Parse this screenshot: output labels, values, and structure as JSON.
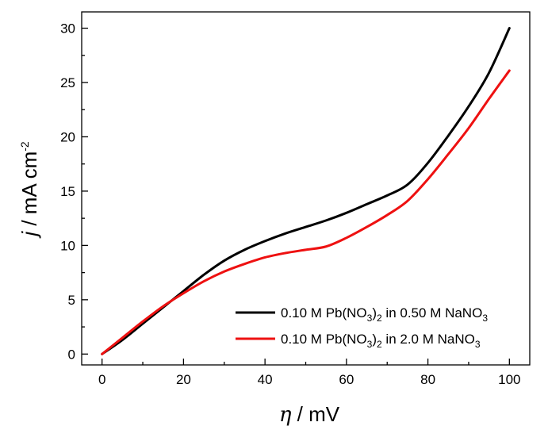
{
  "chart_data": {
    "type": "line",
    "xlabel": {
      "symbol": "η",
      "rest": " / mV"
    },
    "ylabel": {
      "symbol": "j",
      "rest": " / mA cm",
      "sup": "-2"
    },
    "xlim": [
      -5,
      105
    ],
    "ylim": [
      -1,
      31.5
    ],
    "x_ticks": [
      0,
      20,
      40,
      60,
      80,
      100
    ],
    "y_ticks": [
      0,
      5,
      10,
      15,
      20,
      25,
      30
    ],
    "grid": false,
    "legend_position": "bottom-right",
    "series": [
      {
        "name": "0.10 M Pb(NO3)2 in 0.50 M NaNO3",
        "legend": {
          "a": "0.10 M Pb(NO",
          "s1": "3",
          "b": ")",
          "s2": "2",
          "c": " in 0.50 M NaNO",
          "s3": "3"
        },
        "color": "#000000",
        "x": [
          0,
          5,
          10,
          15,
          20,
          25,
          30,
          35,
          40,
          45,
          50,
          55,
          60,
          65,
          70,
          75,
          80,
          85,
          90,
          95,
          100
        ],
        "y": [
          0,
          1.3,
          2.8,
          4.3,
          5.8,
          7.3,
          8.6,
          9.6,
          10.4,
          11.1,
          11.7,
          12.3,
          13.0,
          13.8,
          14.6,
          15.6,
          17.6,
          20.1,
          22.8,
          25.9,
          30.0
        ]
      },
      {
        "name": "0.10 M Pb(NO3)2 in 2.0 M NaNO3",
        "legend": {
          "a": "0.10 M Pb(NO",
          "s1": "3",
          "b": ")",
          "s2": "2",
          "c": " in 2.0 M NaNO",
          "s3": "3"
        },
        "color": "#ee1111",
        "x": [
          0,
          5,
          10,
          15,
          20,
          25,
          30,
          35,
          40,
          45,
          50,
          55,
          60,
          65,
          70,
          75,
          80,
          85,
          90,
          95,
          100
        ],
        "y": [
          0,
          1.5,
          3.0,
          4.4,
          5.6,
          6.7,
          7.6,
          8.3,
          8.9,
          9.3,
          9.6,
          9.9,
          10.7,
          11.7,
          12.8,
          14.1,
          16.1,
          18.4,
          20.8,
          23.5,
          26.1
        ]
      }
    ]
  }
}
